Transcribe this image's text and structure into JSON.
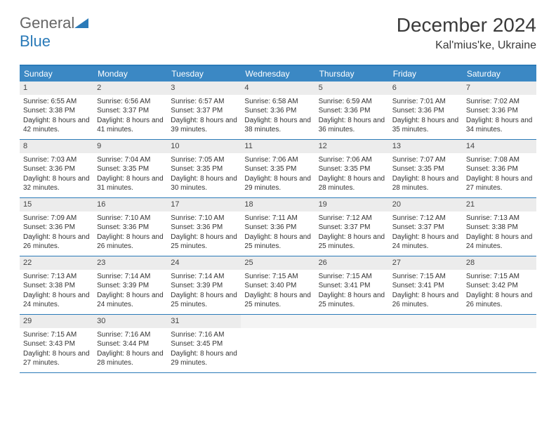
{
  "logo": {
    "text_gen": "General",
    "text_blue": "Blue"
  },
  "title": "December 2024",
  "location": "Kal'mius'ke, Ukraine",
  "colors": {
    "header_bg": "#3b88c4",
    "border": "#2a7ab8",
    "daynum_bg": "#ececec"
  },
  "weekdays": [
    "Sunday",
    "Monday",
    "Tuesday",
    "Wednesday",
    "Thursday",
    "Friday",
    "Saturday"
  ],
  "weeks": [
    [
      {
        "n": "1",
        "sr": "6:55 AM",
        "ss": "3:38 PM",
        "dl": "8 hours and 42 minutes."
      },
      {
        "n": "2",
        "sr": "6:56 AM",
        "ss": "3:37 PM",
        "dl": "8 hours and 41 minutes."
      },
      {
        "n": "3",
        "sr": "6:57 AM",
        "ss": "3:37 PM",
        "dl": "8 hours and 39 minutes."
      },
      {
        "n": "4",
        "sr": "6:58 AM",
        "ss": "3:36 PM",
        "dl": "8 hours and 38 minutes."
      },
      {
        "n": "5",
        "sr": "6:59 AM",
        "ss": "3:36 PM",
        "dl": "8 hours and 36 minutes."
      },
      {
        "n": "6",
        "sr": "7:01 AM",
        "ss": "3:36 PM",
        "dl": "8 hours and 35 minutes."
      },
      {
        "n": "7",
        "sr": "7:02 AM",
        "ss": "3:36 PM",
        "dl": "8 hours and 34 minutes."
      }
    ],
    [
      {
        "n": "8",
        "sr": "7:03 AM",
        "ss": "3:36 PM",
        "dl": "8 hours and 32 minutes."
      },
      {
        "n": "9",
        "sr": "7:04 AM",
        "ss": "3:35 PM",
        "dl": "8 hours and 31 minutes."
      },
      {
        "n": "10",
        "sr": "7:05 AM",
        "ss": "3:35 PM",
        "dl": "8 hours and 30 minutes."
      },
      {
        "n": "11",
        "sr": "7:06 AM",
        "ss": "3:35 PM",
        "dl": "8 hours and 29 minutes."
      },
      {
        "n": "12",
        "sr": "7:06 AM",
        "ss": "3:35 PM",
        "dl": "8 hours and 28 minutes."
      },
      {
        "n": "13",
        "sr": "7:07 AM",
        "ss": "3:35 PM",
        "dl": "8 hours and 28 minutes."
      },
      {
        "n": "14",
        "sr": "7:08 AM",
        "ss": "3:36 PM",
        "dl": "8 hours and 27 minutes."
      }
    ],
    [
      {
        "n": "15",
        "sr": "7:09 AM",
        "ss": "3:36 PM",
        "dl": "8 hours and 26 minutes."
      },
      {
        "n": "16",
        "sr": "7:10 AM",
        "ss": "3:36 PM",
        "dl": "8 hours and 26 minutes."
      },
      {
        "n": "17",
        "sr": "7:10 AM",
        "ss": "3:36 PM",
        "dl": "8 hours and 25 minutes."
      },
      {
        "n": "18",
        "sr": "7:11 AM",
        "ss": "3:36 PM",
        "dl": "8 hours and 25 minutes."
      },
      {
        "n": "19",
        "sr": "7:12 AM",
        "ss": "3:37 PM",
        "dl": "8 hours and 25 minutes."
      },
      {
        "n": "20",
        "sr": "7:12 AM",
        "ss": "3:37 PM",
        "dl": "8 hours and 24 minutes."
      },
      {
        "n": "21",
        "sr": "7:13 AM",
        "ss": "3:38 PM",
        "dl": "8 hours and 24 minutes."
      }
    ],
    [
      {
        "n": "22",
        "sr": "7:13 AM",
        "ss": "3:38 PM",
        "dl": "8 hours and 24 minutes."
      },
      {
        "n": "23",
        "sr": "7:14 AM",
        "ss": "3:39 PM",
        "dl": "8 hours and 24 minutes."
      },
      {
        "n": "24",
        "sr": "7:14 AM",
        "ss": "3:39 PM",
        "dl": "8 hours and 25 minutes."
      },
      {
        "n": "25",
        "sr": "7:15 AM",
        "ss": "3:40 PM",
        "dl": "8 hours and 25 minutes."
      },
      {
        "n": "26",
        "sr": "7:15 AM",
        "ss": "3:41 PM",
        "dl": "8 hours and 25 minutes."
      },
      {
        "n": "27",
        "sr": "7:15 AM",
        "ss": "3:41 PM",
        "dl": "8 hours and 26 minutes."
      },
      {
        "n": "28",
        "sr": "7:15 AM",
        "ss": "3:42 PM",
        "dl": "8 hours and 26 minutes."
      }
    ],
    [
      {
        "n": "29",
        "sr": "7:15 AM",
        "ss": "3:43 PM",
        "dl": "8 hours and 27 minutes."
      },
      {
        "n": "30",
        "sr": "7:16 AM",
        "ss": "3:44 PM",
        "dl": "8 hours and 28 minutes."
      },
      {
        "n": "31",
        "sr": "7:16 AM",
        "ss": "3:45 PM",
        "dl": "8 hours and 29 minutes."
      },
      null,
      null,
      null,
      null
    ]
  ],
  "labels": {
    "sunrise": "Sunrise:",
    "sunset": "Sunset:",
    "daylight": "Daylight:"
  }
}
